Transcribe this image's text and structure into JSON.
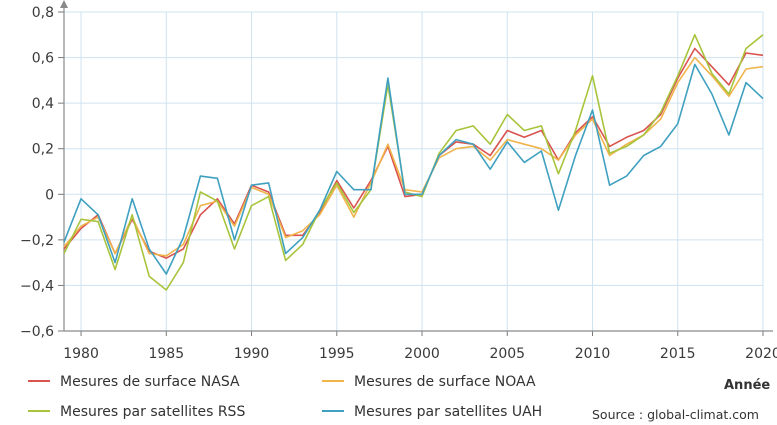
{
  "chart_data": {
    "type": "line",
    "xlabel": "Année",
    "ylabel": "",
    "xlim": [
      1979,
      2020
    ],
    "ylim": [
      -0.6,
      0.8
    ],
    "xticks": [
      1980,
      1985,
      1990,
      1995,
      2000,
      2005,
      2010,
      2015,
      2020
    ],
    "yticks": [
      {
        "value": -0.6,
        "label": "−0,6"
      },
      {
        "value": -0.4,
        "label": "−0,4"
      },
      {
        "value": -0.2,
        "label": "−0,2"
      },
      {
        "value": 0,
        "label": "0"
      },
      {
        "value": 0.2,
        "label": "0,2"
      },
      {
        "value": 0.4,
        "label": "0,4"
      },
      {
        "value": 0.6,
        "label": "0,6"
      },
      {
        "value": 0.8,
        "label": "0,8"
      }
    ],
    "grid": true,
    "legend_position": "bottom",
    "x": [
      1979,
      1980,
      1981,
      1982,
      1983,
      1984,
      1985,
      1986,
      1987,
      1988,
      1989,
      1990,
      1991,
      1992,
      1993,
      1994,
      1995,
      1996,
      1997,
      1998,
      1999,
      2000,
      2001,
      2002,
      2003,
      2004,
      2005,
      2006,
      2007,
      2008,
      2009,
      2010,
      2011,
      2012,
      2013,
      2014,
      2015,
      2016,
      2017,
      2018,
      2019,
      2020
    ],
    "series": [
      {
        "name": "Mesures de surface NASA",
        "color": "#d9534f",
        "values": [
          -0.24,
          -0.15,
          -0.09,
          -0.26,
          -0.11,
          -0.25,
          -0.28,
          -0.24,
          -0.09,
          -0.02,
          -0.13,
          0.04,
          0.01,
          -0.18,
          -0.18,
          -0.08,
          0.06,
          -0.06,
          0.06,
          0.21,
          -0.01,
          0.0,
          0.17,
          0.23,
          0.22,
          0.17,
          0.28,
          0.25,
          0.28,
          0.15,
          0.27,
          0.34,
          0.21,
          0.25,
          0.28,
          0.35,
          0.51,
          0.64,
          0.56,
          0.48,
          0.62,
          0.61
        ]
      },
      {
        "name": "Mesures de surface NOAA",
        "color": "#f0b44c",
        "values": [
          -0.23,
          -0.14,
          -0.1,
          -0.26,
          -0.1,
          -0.26,
          -0.27,
          -0.22,
          -0.05,
          -0.03,
          -0.14,
          0.03,
          0.0,
          -0.19,
          -0.16,
          -0.09,
          0.04,
          -0.1,
          0.05,
          0.22,
          0.02,
          0.01,
          0.16,
          0.2,
          0.21,
          0.15,
          0.24,
          0.22,
          0.2,
          0.15,
          0.26,
          0.33,
          0.17,
          0.22,
          0.26,
          0.33,
          0.49,
          0.6,
          0.52,
          0.43,
          0.55,
          0.56
        ]
      },
      {
        "name": "Mesures par satellites RSS",
        "color": "#a8c43c",
        "values": [
          -0.26,
          -0.11,
          -0.12,
          -0.33,
          -0.09,
          -0.36,
          -0.42,
          -0.3,
          0.01,
          -0.03,
          -0.24,
          -0.05,
          -0.01,
          -0.29,
          -0.22,
          -0.07,
          0.05,
          -0.08,
          0.02,
          0.48,
          0.01,
          -0.01,
          0.18,
          0.28,
          0.3,
          0.22,
          0.35,
          0.28,
          0.3,
          0.09,
          0.28,
          0.52,
          0.18,
          0.21,
          0.26,
          0.36,
          0.52,
          0.7,
          0.53,
          0.44,
          0.64,
          0.7
        ]
      },
      {
        "name": "Mesures par satellites UAH",
        "color": "#3fa0c0",
        "values": [
          -0.21,
          -0.02,
          -0.09,
          -0.3,
          -0.02,
          -0.24,
          -0.35,
          -0.19,
          0.08,
          0.07,
          -0.2,
          0.04,
          0.05,
          -0.26,
          -0.19,
          -0.07,
          0.1,
          0.02,
          0.02,
          0.51,
          0.0,
          0.0,
          0.17,
          0.24,
          0.22,
          0.11,
          0.23,
          0.14,
          0.19,
          -0.07,
          0.17,
          0.37,
          0.04,
          0.08,
          0.17,
          0.21,
          0.31,
          0.57,
          0.44,
          0.26,
          0.49,
          0.42
        ]
      }
    ],
    "source": "Source : global-climat.com"
  }
}
